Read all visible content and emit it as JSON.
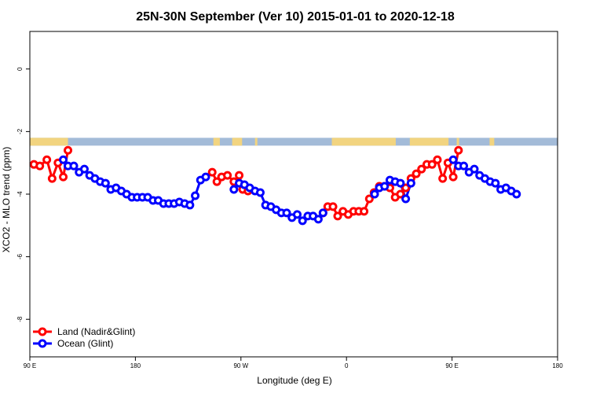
{
  "chart_data": {
    "type": "line",
    "title": "25N-30N September (Ver 10)   2015-01-01 to 2020-12-18",
    "xlabel": "Longitude (deg E)",
    "ylabel": "XCO2 - MLO trend (ppm)",
    "xlim": [
      90,
      540
    ],
    "ylim": [
      -9.2,
      1.2
    ],
    "x_ticks": [
      {
        "value": 90,
        "label": "90 E"
      },
      {
        "value": 180,
        "label": "180"
      },
      {
        "value": 270,
        "label": "90 W"
      },
      {
        "value": 360,
        "label": "0"
      },
      {
        "value": 450,
        "label": "90 E"
      },
      {
        "value": 540,
        "label": "180"
      }
    ],
    "y_ticks": [
      {
        "value": 0,
        "label": "0"
      },
      {
        "value": -2,
        "label": "-2"
      },
      {
        "value": -4,
        "label": "-4"
      },
      {
        "value": -6,
        "label": "-6"
      },
      {
        "value": -8,
        "label": "-8"
      }
    ],
    "land_mask": {
      "y_range": [
        -2.45,
        -2.2
      ],
      "ocean_color": "#A3BBD8",
      "land_color": "#F2D480",
      "land_segments": [
        [
          90,
          122.5
        ],
        [
          246.5,
          252
        ],
        [
          262.5,
          271
        ],
        [
          282,
          284
        ],
        [
          347.5,
          402
        ],
        [
          414,
          447
        ],
        [
          454,
          456
        ],
        [
          482,
          486
        ]
      ]
    },
    "series": [
      {
        "name": "Land (Nadir&Glint)",
        "color": "#FF0000",
        "segments": [
          [
            [
              93.5,
              -3.05
            ],
            [
              98.5,
              -3.1
            ],
            [
              104.5,
              -2.9
            ],
            [
              109,
              -3.5
            ],
            [
              114,
              -3.0
            ],
            [
              118.5,
              -3.45
            ],
            [
              122.5,
              -2.6
            ]
          ],
          [
            [
              245.5,
              -3.3
            ],
            [
              249.5,
              -3.6
            ],
            [
              253.5,
              -3.45
            ],
            [
              258.5,
              -3.4
            ],
            [
              264,
              -3.6
            ],
            [
              268.5,
              -3.4
            ],
            [
              271.5,
              -3.85
            ],
            [
              276,
              -3.9
            ]
          ],
          [
            [
              340,
              -4.6
            ],
            [
              344,
              -4.4
            ],
            [
              348.5,
              -4.4
            ],
            [
              352.5,
              -4.7
            ],
            [
              357,
              -4.55
            ],
            [
              361.5,
              -4.65
            ],
            [
              366,
              -4.55
            ],
            [
              370.5,
              -4.55
            ],
            [
              375,
              -4.55
            ],
            [
              379.5,
              -4.15
            ],
            [
              383.5,
              -3.95
            ],
            [
              388,
              -3.75
            ],
            [
              392.5,
              -3.75
            ],
            [
              397,
              -3.8
            ],
            [
              401.5,
              -4.1
            ],
            [
              406,
              -4.0
            ],
            [
              410.5,
              -3.8
            ],
            [
              415,
              -3.5
            ],
            [
              419.5,
              -3.35
            ],
            [
              424,
              -3.2
            ],
            [
              428.5,
              -3.05
            ],
            [
              433,
              -3.05
            ],
            [
              437.5,
              -2.9
            ],
            [
              442,
              -3.5
            ],
            [
              446.5,
              -3.0
            ],
            [
              451,
              -3.45
            ],
            [
              455.5,
              -2.6
            ]
          ]
        ]
      },
      {
        "name": "Ocean (Glint)",
        "color": "#0000FF",
        "segments": [
          [
            [
              118.5,
              -2.9
            ],
            [
              122.5,
              -3.1
            ],
            [
              127.5,
              -3.1
            ],
            [
              132,
              -3.3
            ],
            [
              136.5,
              -3.2
            ],
            [
              141,
              -3.4
            ],
            [
              145.5,
              -3.5
            ],
            [
              150,
              -3.6
            ],
            [
              154.5,
              -3.65
            ],
            [
              159,
              -3.85
            ],
            [
              163.5,
              -3.8
            ],
            [
              168,
              -3.9
            ],
            [
              172.5,
              -4.0
            ],
            [
              177,
              -4.1
            ],
            [
              181.5,
              -4.1
            ],
            [
              186,
              -4.1
            ],
            [
              190.5,
              -4.1
            ],
            [
              195,
              -4.2
            ],
            [
              199.5,
              -4.2
            ],
            [
              204,
              -4.3
            ],
            [
              208.5,
              -4.3
            ],
            [
              213,
              -4.3
            ],
            [
              217.5,
              -4.25
            ],
            [
              222,
              -4.3
            ],
            [
              226.5,
              -4.35
            ],
            [
              231,
              -4.05
            ],
            [
              235.5,
              -3.55
            ],
            [
              240,
              -3.45
            ]
          ],
          [
            [
              264,
              -3.85
            ],
            [
              268.5,
              -3.65
            ],
            [
              273,
              -3.7
            ],
            [
              277.5,
              -3.8
            ],
            [
              282,
              -3.9
            ],
            [
              286.5,
              -3.95
            ],
            [
              291,
              -4.35
            ],
            [
              295.5,
              -4.4
            ],
            [
              300,
              -4.5
            ],
            [
              304.5,
              -4.6
            ],
            [
              309,
              -4.6
            ],
            [
              313.5,
              -4.75
            ],
            [
              318,
              -4.65
            ],
            [
              322.5,
              -4.85
            ],
            [
              327,
              -4.7
            ],
            [
              331.5,
              -4.7
            ],
            [
              336,
              -4.8
            ],
            [
              340,
              -4.6
            ]
          ],
          [
            [
              384,
              -4.0
            ],
            [
              388,
              -3.8
            ],
            [
              392.5,
              -3.75
            ],
            [
              397,
              -3.55
            ],
            [
              401.5,
              -3.6
            ],
            [
              406,
              -3.65
            ],
            [
              410.5,
              -4.15
            ],
            [
              415,
              -3.65
            ]
          ],
          [
            [
              451,
              -2.9
            ],
            [
              455.5,
              -3.1
            ],
            [
              460,
              -3.1
            ],
            [
              464.5,
              -3.3
            ],
            [
              469,
              -3.2
            ],
            [
              473.5,
              -3.4
            ],
            [
              478,
              -3.5
            ],
            [
              482.5,
              -3.6
            ],
            [
              487,
              -3.65
            ],
            [
              491.5,
              -3.85
            ],
            [
              496,
              -3.8
            ],
            [
              500.5,
              -3.9
            ],
            [
              505,
              -4.0
            ]
          ]
        ]
      }
    ],
    "legend": {
      "placement": "bottom-left",
      "items": [
        "Land (Nadir&Glint)",
        "Ocean (Glint)"
      ]
    }
  }
}
